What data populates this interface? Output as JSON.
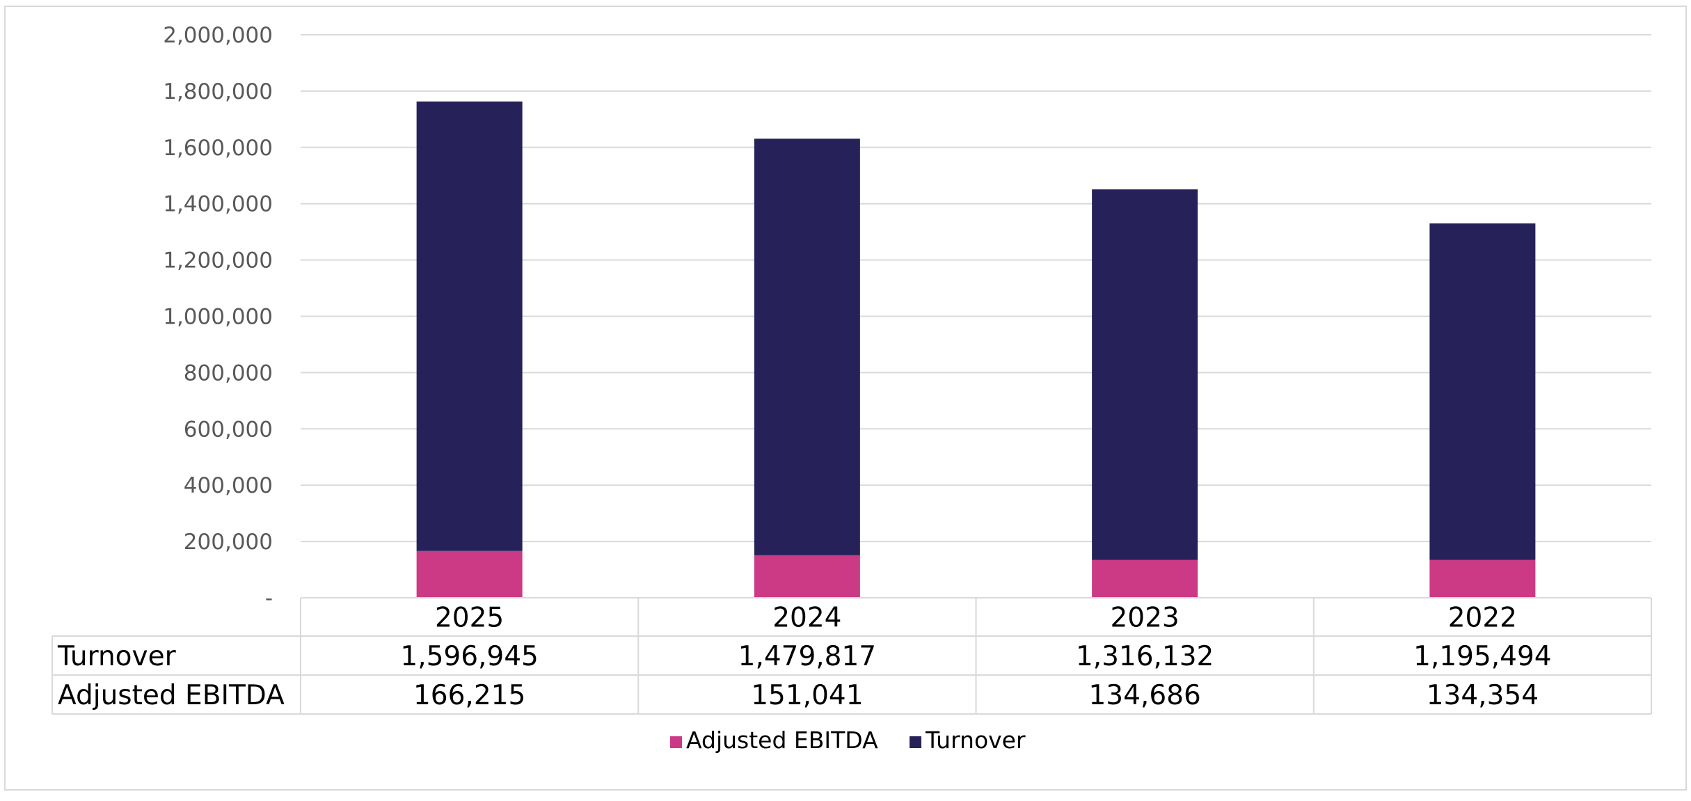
{
  "chart_data": {
    "type": "bar",
    "stacked": true,
    "title": "",
    "xlabel": "",
    "ylabel": "",
    "categories": [
      "2025",
      "2024",
      "2023",
      "2022"
    ],
    "series": [
      {
        "name": "Adjusted EBITDA",
        "values": [
          166215,
          151041,
          134686,
          134354
        ],
        "color": "#cc3a85"
      },
      {
        "name": "Turnover",
        "values": [
          1596945,
          1479817,
          1316132,
          1195494
        ],
        "color": "#262259"
      }
    ],
    "y_ticks": [
      {
        "value": 0,
        "label": "-"
      },
      {
        "value": 200000,
        "label": "200,000"
      },
      {
        "value": 400000,
        "label": "400,000"
      },
      {
        "value": 600000,
        "label": "600,000"
      },
      {
        "value": 800000,
        "label": "800,000"
      },
      {
        "value": 1000000,
        "label": "1,000,000"
      },
      {
        "value": 1200000,
        "label": "1,200,000"
      },
      {
        "value": 1400000,
        "label": "1,400,000"
      },
      {
        "value": 1600000,
        "label": "1,600,000"
      },
      {
        "value": 1800000,
        "label": "1,800,000"
      },
      {
        "value": 2000000,
        "label": "2,000,000"
      }
    ],
    "ylim": [
      0,
      2000000
    ],
    "grid": true,
    "legend_position": "bottom",
    "data_table": {
      "rows": [
        {
          "label": "Turnover",
          "values": [
            "1,596,945",
            "1,479,817",
            "1,316,132",
            "1,195,494"
          ]
        },
        {
          "label": "Adjusted EBITDA",
          "values": [
            "166,215",
            "151,041",
            "134,686",
            "134,354"
          ]
        }
      ]
    }
  }
}
